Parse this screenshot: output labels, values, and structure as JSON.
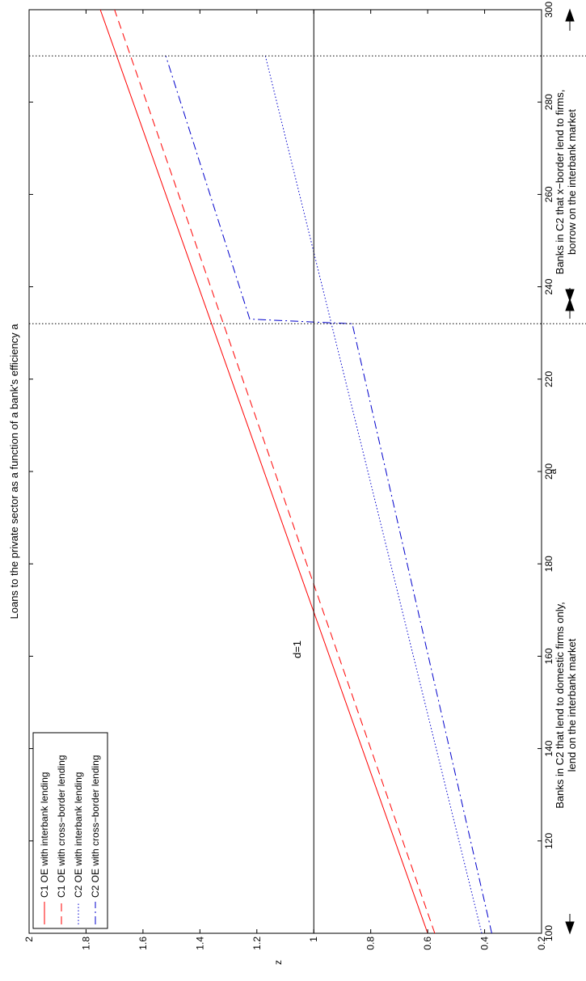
{
  "chart_data": {
    "type": "line",
    "orientation": "rotated-90-ccw",
    "title": "Loans to the private sector as a function of a bank's efficiency a",
    "xlabel": "a",
    "ylabel": "z",
    "xlim": [
      100,
      300
    ],
    "ylim": [
      0.2,
      2
    ],
    "xticks": [
      100,
      120,
      140,
      160,
      180,
      200,
      220,
      240,
      260,
      280,
      300
    ],
    "yticks": [
      0.2,
      0.4,
      0.6,
      0.8,
      1,
      1.2,
      1.4,
      1.6,
      1.8,
      2
    ],
    "xtick_labels": [
      "100",
      "120",
      "140",
      "160",
      "180",
      "200",
      "220",
      "240",
      "260",
      "280",
      "300"
    ],
    "ytick_labels": [
      "0.2",
      "0.4",
      "0.6",
      "0.8",
      "1",
      "1.2",
      "1.4",
      "1.6",
      "1.8",
      "2"
    ],
    "grid": false,
    "legend_position": "bottom-left",
    "series": [
      {
        "name": "C1 OE with interbank lending",
        "color": "#ff0000",
        "dash": "solid",
        "points": [
          [
            100,
            0.6
          ],
          [
            300,
            1.75
          ]
        ]
      },
      {
        "name": "C1 OE with cross−border lending",
        "color": "#ff0000",
        "dash": "dashed",
        "points": [
          [
            100,
            0.575
          ],
          [
            300,
            1.7
          ]
        ]
      },
      {
        "name": "C2 OE with interbank lending",
        "color": "#0000cc",
        "dash": "dotted",
        "points": [
          [
            100,
            0.41
          ],
          [
            290,
            1.17
          ]
        ]
      },
      {
        "name": "C2 OE with cross−border lending",
        "color": "#0000cc",
        "dash": "dashdot",
        "points": [
          [
            100,
            0.375
          ],
          [
            232,
            0.865
          ],
          [
            233,
            1.225
          ],
          [
            290,
            1.52
          ]
        ]
      }
    ],
    "reference_lines": [
      {
        "axis": "y",
        "value": 1,
        "label": "d=1",
        "color": "#000000",
        "dash": "solid"
      },
      {
        "axis": "x",
        "value": 232,
        "color": "#000000",
        "dash": "dotted"
      },
      {
        "axis": "x",
        "value": 290,
        "color": "#000000",
        "dash": "dotted"
      }
    ],
    "annotations": [
      {
        "text_lines": [
          "Banks in C2 that lend to domestic firms only,",
          "lend on the interbank market"
        ],
        "x_range": [
          100,
          232
        ]
      },
      {
        "text_lines": [
          "Banks in C2 that x−border lend to firms,",
          "borrow on the interbank market"
        ],
        "x_range": [
          232,
          300
        ]
      }
    ]
  }
}
